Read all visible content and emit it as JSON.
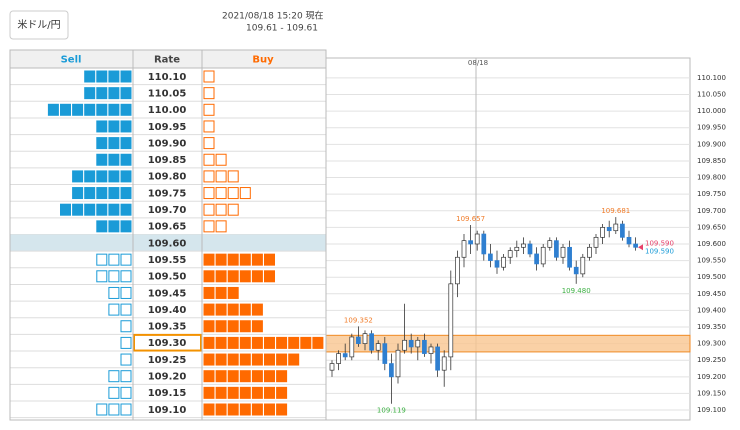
{
  "header": {
    "pair_button": "米ドル/円",
    "timestamp": "2021/08/18 15:20 現在",
    "price_range": "109.61 - 109.61"
  },
  "order_book": {
    "columns": [
      "Sell",
      "Rate",
      "Buy"
    ],
    "sell_color": "#1a9bd7",
    "buy_color": "#ff6a00",
    "rows": [
      {
        "rate": "110.10",
        "sell": 4,
        "sell_filled": true,
        "buy": 1,
        "buy_filled": false
      },
      {
        "rate": "110.05",
        "sell": 4,
        "sell_filled": true,
        "buy": 1,
        "buy_filled": false
      },
      {
        "rate": "110.00",
        "sell": 7,
        "sell_filled": true,
        "buy": 1,
        "buy_filled": false
      },
      {
        "rate": "109.95",
        "sell": 3,
        "sell_filled": true,
        "buy": 1,
        "buy_filled": false
      },
      {
        "rate": "109.90",
        "sell": 3,
        "sell_filled": true,
        "buy": 1,
        "buy_filled": false
      },
      {
        "rate": "109.85",
        "sell": 3,
        "sell_filled": true,
        "buy": 2,
        "buy_filled": false
      },
      {
        "rate": "109.80",
        "sell": 5,
        "sell_filled": true,
        "buy": 3,
        "buy_filled": false
      },
      {
        "rate": "109.75",
        "sell": 5,
        "sell_filled": true,
        "buy": 4,
        "buy_filled": false
      },
      {
        "rate": "109.70",
        "sell": 6,
        "sell_filled": true,
        "buy": 3,
        "buy_filled": false
      },
      {
        "rate": "109.65",
        "sell": 3,
        "sell_filled": true,
        "buy": 2,
        "buy_filled": false
      },
      {
        "rate": "109.60",
        "highlight": true
      },
      {
        "rate": "109.55",
        "sell": 3,
        "sell_filled": false,
        "buy": 6,
        "buy_filled": true
      },
      {
        "rate": "109.50",
        "sell": 3,
        "sell_filled": false,
        "buy": 6,
        "buy_filled": true
      },
      {
        "rate": "109.45",
        "sell": 2,
        "sell_filled": false,
        "buy": 3,
        "buy_filled": true
      },
      {
        "rate": "109.40",
        "sell": 2,
        "sell_filled": false,
        "buy": 5,
        "buy_filled": true
      },
      {
        "rate": "109.35",
        "sell": 1,
        "sell_filled": false,
        "buy": 5,
        "buy_filled": true
      },
      {
        "rate": "109.30",
        "sell": 1,
        "sell_filled": false,
        "buy": 10,
        "buy_filled": true,
        "selected": true
      },
      {
        "rate": "109.25",
        "sell": 1,
        "sell_filled": false,
        "buy": 8,
        "buy_filled": true
      },
      {
        "rate": "109.20",
        "sell": 2,
        "sell_filled": false,
        "buy": 7,
        "buy_filled": true
      },
      {
        "rate": "109.15",
        "sell": 2,
        "sell_filled": false,
        "buy": 7,
        "buy_filled": true
      },
      {
        "rate": "109.10",
        "sell": 3,
        "sell_filled": false,
        "buy": 7,
        "buy_filled": true
      }
    ]
  },
  "chart_data": {
    "type": "candlestick",
    "date_label": "08/18",
    "ylim": [
      109.07,
      110.16
    ],
    "yticks": [
      {
        "value": 110.1,
        "label": "110.100"
      },
      {
        "value": 110.05,
        "label": "110.050"
      },
      {
        "value": 110.0,
        "label": "110.000"
      },
      {
        "value": 109.95,
        "label": "109.950"
      },
      {
        "value": 109.9,
        "label": "109.900"
      },
      {
        "value": 109.85,
        "label": "109.850"
      },
      {
        "value": 109.8,
        "label": "109.800"
      },
      {
        "value": 109.75,
        "label": "109.750"
      },
      {
        "value": 109.7,
        "label": "109.700"
      },
      {
        "value": 109.65,
        "label": "109.650"
      },
      {
        "value": 109.6,
        "label": "109.600"
      },
      {
        "value": 109.55,
        "label": "109.550"
      },
      {
        "value": 109.5,
        "label": "109.500"
      },
      {
        "value": 109.45,
        "label": "109.450"
      },
      {
        "value": 109.4,
        "label": "109.400"
      },
      {
        "value": 109.35,
        "label": "109.350"
      },
      {
        "value": 109.3,
        "label": "109.300"
      },
      {
        "value": 109.25,
        "label": "109.250"
      },
      {
        "value": 109.2,
        "label": "109.200"
      },
      {
        "value": 109.15,
        "label": "109.150"
      },
      {
        "value": 109.1,
        "label": "109.100"
      }
    ],
    "up_color": "#ffffff",
    "down_color": "#2f7fd0",
    "candles": [
      [
        109.22,
        109.25,
        109.2,
        109.24
      ],
      [
        109.24,
        109.28,
        109.22,
        109.27
      ],
      [
        109.27,
        109.3,
        109.25,
        109.26
      ],
      [
        109.26,
        109.33,
        109.25,
        109.32
      ],
      [
        109.32,
        109.352,
        109.29,
        109.3
      ],
      [
        109.3,
        109.34,
        109.28,
        109.33
      ],
      [
        109.33,
        109.34,
        109.27,
        109.28
      ],
      [
        109.28,
        109.31,
        109.25,
        109.3
      ],
      [
        109.3,
        109.32,
        109.22,
        109.24
      ],
      [
        109.24,
        109.27,
        109.119,
        109.2
      ],
      [
        109.2,
        109.3,
        109.18,
        109.28
      ],
      [
        109.28,
        109.42,
        109.27,
        109.31
      ],
      [
        109.31,
        109.33,
        109.27,
        109.29
      ],
      [
        109.29,
        109.32,
        109.25,
        109.31
      ],
      [
        109.31,
        109.33,
        109.26,
        109.27
      ],
      [
        109.27,
        109.3,
        109.24,
        109.29
      ],
      [
        109.29,
        109.3,
        109.2,
        109.22
      ],
      [
        109.22,
        109.28,
        109.17,
        109.26
      ],
      [
        109.26,
        109.52,
        109.22,
        109.48
      ],
      [
        109.48,
        109.58,
        109.44,
        109.56
      ],
      [
        109.56,
        109.63,
        109.53,
        109.61
      ],
      [
        109.61,
        109.657,
        109.57,
        109.6
      ],
      [
        109.6,
        109.64,
        109.58,
        109.63
      ],
      [
        109.63,
        109.64,
        109.55,
        109.57
      ],
      [
        109.57,
        109.6,
        109.53,
        109.55
      ],
      [
        109.55,
        109.58,
        109.51,
        109.53
      ],
      [
        109.53,
        109.57,
        109.52,
        109.56
      ],
      [
        109.56,
        109.59,
        109.54,
        109.58
      ],
      [
        109.58,
        109.61,
        109.56,
        109.59
      ],
      [
        109.59,
        109.62,
        109.57,
        109.6
      ],
      [
        109.6,
        109.61,
        109.56,
        109.57
      ],
      [
        109.57,
        109.59,
        109.52,
        109.54
      ],
      [
        109.54,
        109.6,
        109.53,
        109.59
      ],
      [
        109.59,
        109.62,
        109.58,
        109.61
      ],
      [
        109.61,
        109.62,
        109.55,
        109.56
      ],
      [
        109.56,
        109.6,
        109.54,
        109.59
      ],
      [
        109.59,
        109.61,
        109.52,
        109.53
      ],
      [
        109.53,
        109.55,
        109.48,
        109.51
      ],
      [
        109.51,
        109.57,
        109.5,
        109.56
      ],
      [
        109.56,
        109.6,
        109.55,
        109.59
      ],
      [
        109.59,
        109.63,
        109.57,
        109.62
      ],
      [
        109.62,
        109.66,
        109.6,
        109.65
      ],
      [
        109.65,
        109.67,
        109.62,
        109.64
      ],
      [
        109.64,
        109.681,
        109.63,
        109.66
      ],
      [
        109.66,
        109.67,
        109.61,
        109.62
      ],
      [
        109.62,
        109.64,
        109.59,
        109.6
      ],
      [
        109.6,
        109.62,
        109.58,
        109.59
      ]
    ],
    "annotations": [
      {
        "label": "109.657",
        "value": 109.657,
        "color": "#f07c2a"
      },
      {
        "label": "109.681",
        "value": 109.681,
        "color": "#f07c2a"
      },
      {
        "label": "109.480",
        "value": 109.48,
        "color": "#3cb043"
      },
      {
        "label": "109.352",
        "value": 109.352,
        "color": "#f07c2a"
      },
      {
        "label": "109.119",
        "value": 109.119,
        "color": "#3cb043"
      }
    ],
    "price_labels": [
      {
        "label": "109.590",
        "value": 109.59,
        "color": "#e8406a"
      },
      {
        "label": "109.590",
        "value": 109.59,
        "color": "#1a9bd7"
      }
    ]
  }
}
